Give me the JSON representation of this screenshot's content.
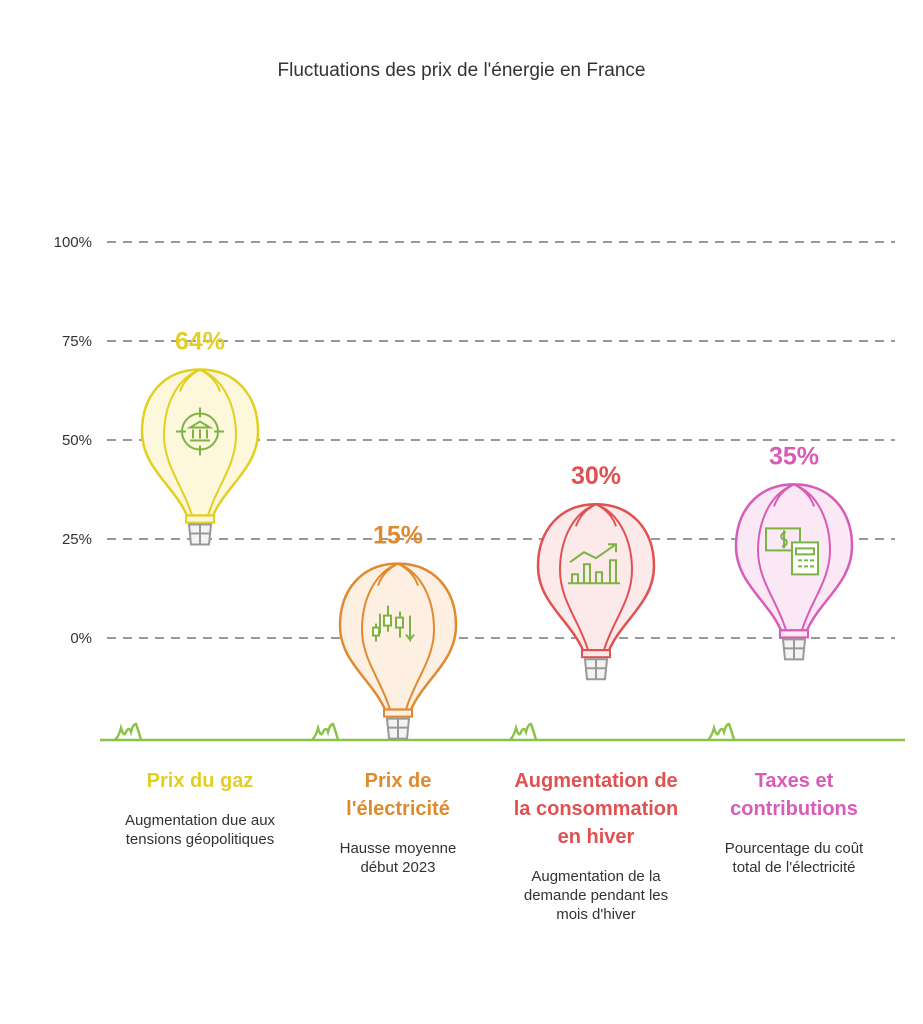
{
  "chart_data": {
    "type": "bar",
    "title": "Fluctuations des prix de l'énergie en France",
    "ylim": [
      0,
      100
    ],
    "yticks": [
      "100%",
      "75%",
      "50%",
      "25%",
      "0%"
    ],
    "grid": true,
    "categories": [
      "Prix du gaz",
      "Prix de l'électricité",
      "Augmentation de la consommation en hiver",
      "Taxes et contributions"
    ],
    "values": [
      64,
      15,
      30,
      35
    ],
    "value_labels": [
      "64%",
      "15%",
      "30%",
      "35%"
    ],
    "descriptions": [
      "Augmentation due aux tensions géopolitiques",
      "Hausse moyenne début 2023",
      "Augmentation de la demande pendant les mois d'hiver",
      "Pourcentage du coût total de l'électricité"
    ],
    "colors": [
      "#e2cf22",
      "#e08a30",
      "#e05252",
      "#d95bb8"
    ],
    "fills": [
      "#fdf8dc",
      "#fdf0e2",
      "#fce9e9",
      "#fbe8f5"
    ],
    "icons": [
      "bank-target-icon",
      "candlestick-chart-icon",
      "bar-chart-growth-icon",
      "money-calculator-icon"
    ],
    "icon_color": "#7cb342",
    "ground_color": "#8bc34a"
  }
}
